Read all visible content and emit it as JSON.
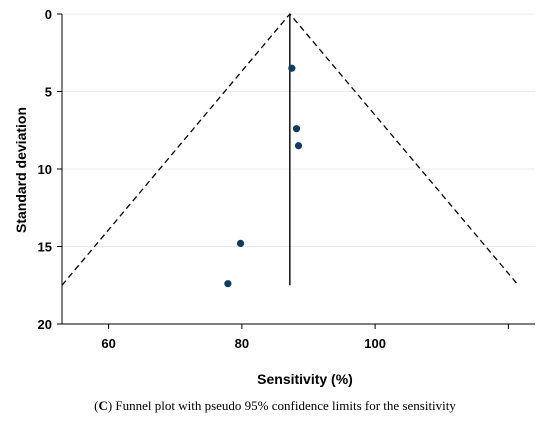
{
  "chart_data": {
    "type": "scatter",
    "xlabel": "Sensitivity (%)",
    "ylabel": "Standard deviation",
    "xlim": [
      53,
      124
    ],
    "ylim": [
      20,
      0
    ],
    "y_inverted": true,
    "xticks": [
      60,
      80,
      100,
      120
    ],
    "xtick_labels": [
      "60",
      "80",
      "100",
      ""
    ],
    "yticks": [
      0,
      5,
      10,
      15,
      20
    ],
    "ytick_labels": [
      "0",
      "5",
      "10",
      "15",
      "20"
    ],
    "grid": "horizontal",
    "pooled_estimate": 87.2,
    "pooled_line_y_range": [
      0,
      17.5
    ],
    "confidence_limits": {
      "apex": [
        87.2,
        0
      ],
      "left_end": [
        53,
        17.5
      ],
      "right_end": [
        121.5,
        17.5
      ],
      "style": "dashed"
    },
    "points": [
      {
        "x": 87.5,
        "y": 3.5
      },
      {
        "x": 88.2,
        "y": 7.4
      },
      {
        "x": 88.5,
        "y": 8.5
      },
      {
        "x": 79.8,
        "y": 14.8
      },
      {
        "x": 77.9,
        "y": 17.4
      }
    ],
    "point_color": "#0f3d5e"
  },
  "caption": {
    "prefix": "(",
    "letter": "C",
    "text": ") Funnel plot with pseudo 95% confidence limits for the sensitivity"
  }
}
